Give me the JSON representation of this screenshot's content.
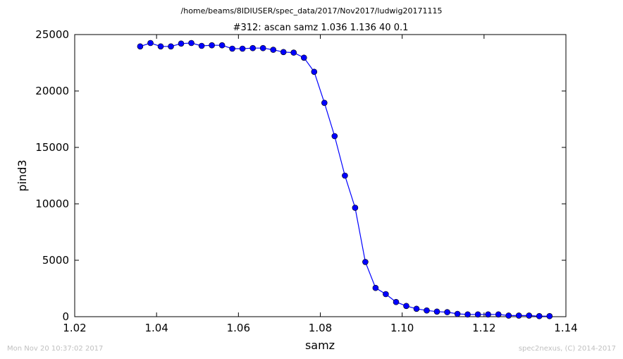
{
  "chart_data": {
    "type": "line",
    "suptitle": "/home/beams/8IDIUSER/spec_data/2017/Nov2017/ludwig20171115",
    "title": "#312: ascan  samz 1.036 1.136  40 0.1",
    "xlabel": "samz",
    "ylabel": "pind3",
    "xlim": [
      1.02,
      1.14
    ],
    "ylim": [
      0,
      25000
    ],
    "x_ticks": [
      "1.02",
      "1.04",
      "1.06",
      "1.08",
      "1.10",
      "1.12",
      "1.14"
    ],
    "y_ticks": [
      "0",
      "5000",
      "10000",
      "15000",
      "20000",
      "25000"
    ],
    "grid": false,
    "series": [
      {
        "color": "#0000ff",
        "marker": "circle",
        "x": [
          1.036,
          1.0385,
          1.041,
          1.0435,
          1.046,
          1.0485,
          1.051,
          1.0535,
          1.056,
          1.0585,
          1.061,
          1.0635,
          1.066,
          1.0685,
          1.071,
          1.0735,
          1.076,
          1.0785,
          1.081,
          1.0835,
          1.086,
          1.0885,
          1.091,
          1.0935,
          1.096,
          1.0985,
          1.101,
          1.1035,
          1.106,
          1.1085,
          1.111,
          1.1135,
          1.116,
          1.1185,
          1.121,
          1.1235,
          1.126,
          1.1285,
          1.131,
          1.1335,
          1.136
        ],
        "y": [
          23950,
          24250,
          23950,
          23950,
          24200,
          24250,
          24000,
          24050,
          24050,
          23750,
          23750,
          23800,
          23800,
          23650,
          23450,
          23400,
          22950,
          21700,
          18950,
          16000,
          12500,
          9650,
          4850,
          2550,
          2000,
          1300,
          950,
          700,
          550,
          450,
          400,
          250,
          200,
          200,
          200,
          200,
          100,
          100,
          100,
          50,
          50
        ]
      }
    ]
  },
  "footer": {
    "timestamp": "Mon Nov 20 10:37:02 2017",
    "credit": "spec2nexus, (C) 2014-2017"
  }
}
